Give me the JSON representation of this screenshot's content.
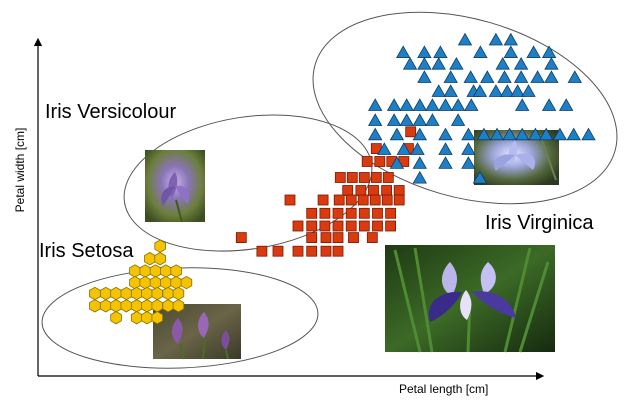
{
  "chart_data": {
    "type": "scatter",
    "xlabel": "Petal length [cm]",
    "ylabel": "Petal width [cm]",
    "xlim": [
      0,
      100
    ],
    "ylim": [
      0,
      100
    ],
    "grid": false,
    "series": [
      {
        "name": "Iris Setosa",
        "marker": "hexagon",
        "color": "#f5c400",
        "stroke": "#8a6d00",
        "x": [
          21.0,
          19.2,
          21.0,
          16.6,
          18.4,
          20.2,
          22.0,
          23.8,
          16.6,
          18.4,
          20.2,
          22.0,
          23.8,
          25.6,
          9.6,
          11.5,
          13.3,
          15.1,
          16.9,
          18.7,
          20.5,
          22.4,
          24.2,
          9.6,
          11.5,
          13.3,
          15.1,
          16.9,
          18.7,
          20.5,
          22.4,
          24.2,
          13.3,
          16.9,
          18.7,
          20.5
        ],
        "y": [
          38.1,
          34.4,
          34.4,
          30.8,
          30.8,
          30.8,
          30.8,
          30.8,
          27.4,
          27.4,
          27.4,
          27.4,
          27.4,
          27.4,
          24.2,
          24.2,
          24.2,
          24.2,
          24.2,
          24.2,
          24.2,
          24.2,
          24.2,
          20.6,
          20.6,
          20.6,
          20.6,
          20.6,
          20.6,
          20.6,
          20.6,
          20.6,
          17.1,
          17.1,
          17.1,
          17.1
        ]
      },
      {
        "name": "Iris Versicolour",
        "marker": "square",
        "color": "#d93a0f",
        "stroke": "#7a1a00",
        "x": [
          64.8,
          58.8,
          64.4,
          57.2,
          59.4,
          61.5,
          63.6,
          52.5,
          54.6,
          56.7,
          58.8,
          60.9,
          53.8,
          56.1,
          58.3,
          60.6,
          62.8,
          43.7,
          49.5,
          52.3,
          54.4,
          56.5,
          58.6,
          60.7,
          62.8,
          47.5,
          49.8,
          52.1,
          54.4,
          56.7,
          59.0,
          61.3,
          45.1,
          47.5,
          49.8,
          52.1,
          54.4,
          56.7,
          59.0,
          61.3,
          35.2,
          47.5,
          50.0,
          52.1,
          54.8,
          58.1,
          38.8,
          41.6,
          45.1,
          47.5,
          50.0,
          52.1
        ],
        "y": [
          71.6,
          66.7,
          66.7,
          62.9,
          62.9,
          62.9,
          62.9,
          58.2,
          58.2,
          58.2,
          58.2,
          58.2,
          54.4,
          54.4,
          54.4,
          54.4,
          54.4,
          51.6,
          51.6,
          51.6,
          51.6,
          51.6,
          51.6,
          51.6,
          51.6,
          47.7,
          47.7,
          47.7,
          47.7,
          47.7,
          47.7,
          47.7,
          44.0,
          44.0,
          44.0,
          44.0,
          44.0,
          44.0,
          44.0,
          44.0,
          40.6,
          40.6,
          40.6,
          40.6,
          40.6,
          40.6,
          36.6,
          36.6,
          36.6,
          36.6,
          36.6,
          36.6
        ]
      },
      {
        "name": "Iris Virginica",
        "marker": "triangle",
        "color": "#1f7fc6",
        "stroke": "#0b3e66",
        "x": [
          74.3,
          79.7,
          82.3,
          63.5,
          67.2,
          70.0,
          77.0,
          82.3,
          86.3,
          89.0,
          64.7,
          67.2,
          69.7,
          72.8,
          80.9,
          84.1,
          89.4,
          67.2,
          71.8,
          75.3,
          78.2,
          81.2,
          84.1,
          87.0,
          89.4,
          93.5,
          69.7,
          71.8,
          75.8,
          76.9,
          79.7,
          81.7,
          83.5,
          85.4,
          58.6,
          61.9,
          64.1,
          66.4,
          68.6,
          70.9,
          73.1,
          75.4,
          84.3,
          89.0,
          92.0,
          58.6,
          61.9,
          64.1,
          66.4,
          68.6,
          73.1,
          58.6,
          62.4,
          66.4,
          70.9,
          74.9,
          77.6,
          79.9,
          82.1,
          84.3,
          86.6,
          88.5,
          90.9,
          93.3,
          95.9,
          60.2,
          63.6,
          66.0,
          70.9,
          74.9,
          62.4,
          66.4,
          70.9,
          74.9,
          66.4,
          76.9
        ],
        "y": [
          98.5,
          98.5,
          98.5,
          94.8,
          94.8,
          94.8,
          94.8,
          94.8,
          94.8,
          94.8,
          91.4,
          91.4,
          91.4,
          91.4,
          91.4,
          91.4,
          91.4,
          87.5,
          87.5,
          87.5,
          87.5,
          87.5,
          87.5,
          87.5,
          87.5,
          87.5,
          83.4,
          83.4,
          83.4,
          83.4,
          83.4,
          83.4,
          83.4,
          83.4,
          79.3,
          79.3,
          79.3,
          79.3,
          79.3,
          79.3,
          79.3,
          79.3,
          79.3,
          79.3,
          79.3,
          74.9,
          74.9,
          74.9,
          74.9,
          74.9,
          74.9,
          70.7,
          70.7,
          70.7,
          70.7,
          70.7,
          70.7,
          70.7,
          70.7,
          70.7,
          70.7,
          70.7,
          70.7,
          70.7,
          70.7,
          66.4,
          66.4,
          66.4,
          66.4,
          66.4,
          62.3,
          62.3,
          62.3,
          62.3,
          58.0,
          58.0
        ]
      }
    ],
    "annotations": [
      {
        "text": "Iris Versicolour",
        "refers_to": "Iris Versicolour"
      },
      {
        "text": "Iris Virginica",
        "refers_to": "Iris Virginica"
      },
      {
        "text": "Iris Setosa",
        "refers_to": "Iris Setosa"
      }
    ],
    "photos": [
      {
        "name": "versicolour-photo",
        "depicts": "purple iris flower",
        "tone": "#6a7d3a"
      },
      {
        "name": "virginica-photo",
        "depicts": "pale blue iris flower",
        "tone": "#4e5e3a"
      },
      {
        "name": "large-iris-photo",
        "depicts": "blue-purple iris flower",
        "tone": "#2f4f1f"
      },
      {
        "name": "setosa-photo",
        "depicts": "purple iris flowers",
        "tone": "#5a5a3a"
      }
    ]
  }
}
